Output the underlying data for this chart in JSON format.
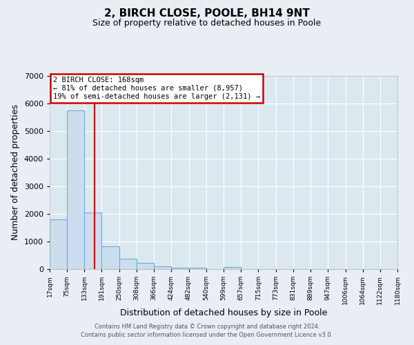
{
  "title": "2, BIRCH CLOSE, POOLE, BH14 9NT",
  "subtitle": "Size of property relative to detached houses in Poole",
  "xlabel": "Distribution of detached houses by size in Poole",
  "ylabel": "Number of detached properties",
  "bin_edges": [
    17,
    75,
    133,
    191,
    250,
    308,
    366,
    424,
    482,
    540,
    599,
    657,
    715,
    773,
    831,
    889,
    947,
    1006,
    1064,
    1122,
    1180
  ],
  "bar_heights": [
    1800,
    5750,
    2050,
    820,
    370,
    220,
    110,
    50,
    50,
    0,
    70,
    0,
    0,
    0,
    0,
    0,
    0,
    0,
    0,
    0
  ],
  "bar_color": "#ccdded",
  "bar_edgecolor": "#6aaed6",
  "property_size": 168,
  "vline_color": "#cc0000",
  "ylim": [
    0,
    7000
  ],
  "yticks": [
    0,
    1000,
    2000,
    3000,
    4000,
    5000,
    6000,
    7000
  ],
  "annotation_title": "2 BIRCH CLOSE: 168sqm",
  "annotation_line1": "← 81% of detached houses are smaller (8,957)",
  "annotation_line2": "19% of semi-detached houses are larger (2,131) →",
  "annotation_box_facecolor": "#ffffff",
  "annotation_box_edgecolor": "#cc0000",
  "footer_line1": "Contains HM Land Registry data © Crown copyright and database right 2024.",
  "footer_line2": "Contains public sector information licensed under the Open Government Licence v3.0.",
  "fig_background_color": "#e8eef4",
  "plot_background_color": "#dce8f0",
  "grid_color": "#ffffff",
  "tick_labels": [
    "17sqm",
    "75sqm",
    "133sqm",
    "191sqm",
    "250sqm",
    "308sqm",
    "366sqm",
    "424sqm",
    "482sqm",
    "540sqm",
    "599sqm",
    "657sqm",
    "715sqm",
    "773sqm",
    "831sqm",
    "889sqm",
    "947sqm",
    "1006sqm",
    "1064sqm",
    "1122sqm",
    "1180sqm"
  ]
}
